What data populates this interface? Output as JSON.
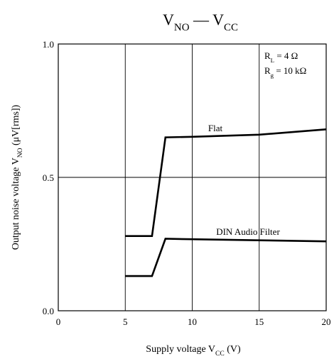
{
  "chart_data": {
    "type": "line",
    "title": {
      "main": "V",
      "main_sub": "NO",
      "sep": " — ",
      "second": "V",
      "second_sub": "CC"
    },
    "xlabel": {
      "text": "Supply voltage  V",
      "sub": "CC",
      "unit": "  (V)"
    },
    "ylabel": {
      "text": "Output noise voltage  V",
      "sub": "NO",
      "unit": "  (μV[rms])"
    },
    "xlim": [
      0,
      20
    ],
    "ylim": [
      0.0,
      1.0
    ],
    "x_ticks": [
      0,
      5,
      10,
      15,
      20
    ],
    "x_tick_labels": [
      "0",
      "5",
      "10",
      "15",
      "20"
    ],
    "y_ticks": [
      0.0,
      0.5,
      1.0
    ],
    "y_tick_labels": [
      "0.0",
      "0.5",
      "1.0"
    ],
    "grid": true,
    "conditions": [
      {
        "sym": "R",
        "sub": "L",
        "val": " = 4 Ω"
      },
      {
        "sym": "R",
        "sub": "g",
        "val": " = 10 kΩ"
      }
    ],
    "series": [
      {
        "name": "Flat",
        "x": [
          5,
          7,
          8,
          10,
          15,
          20
        ],
        "y": [
          0.28,
          0.28,
          0.65,
          0.652,
          0.66,
          0.68
        ]
      },
      {
        "name": "DIN Audio Filter",
        "x": [
          5,
          7,
          8,
          10,
          15,
          20
        ],
        "y": [
          0.13,
          0.13,
          0.27,
          0.268,
          0.264,
          0.26
        ]
      }
    ]
  }
}
